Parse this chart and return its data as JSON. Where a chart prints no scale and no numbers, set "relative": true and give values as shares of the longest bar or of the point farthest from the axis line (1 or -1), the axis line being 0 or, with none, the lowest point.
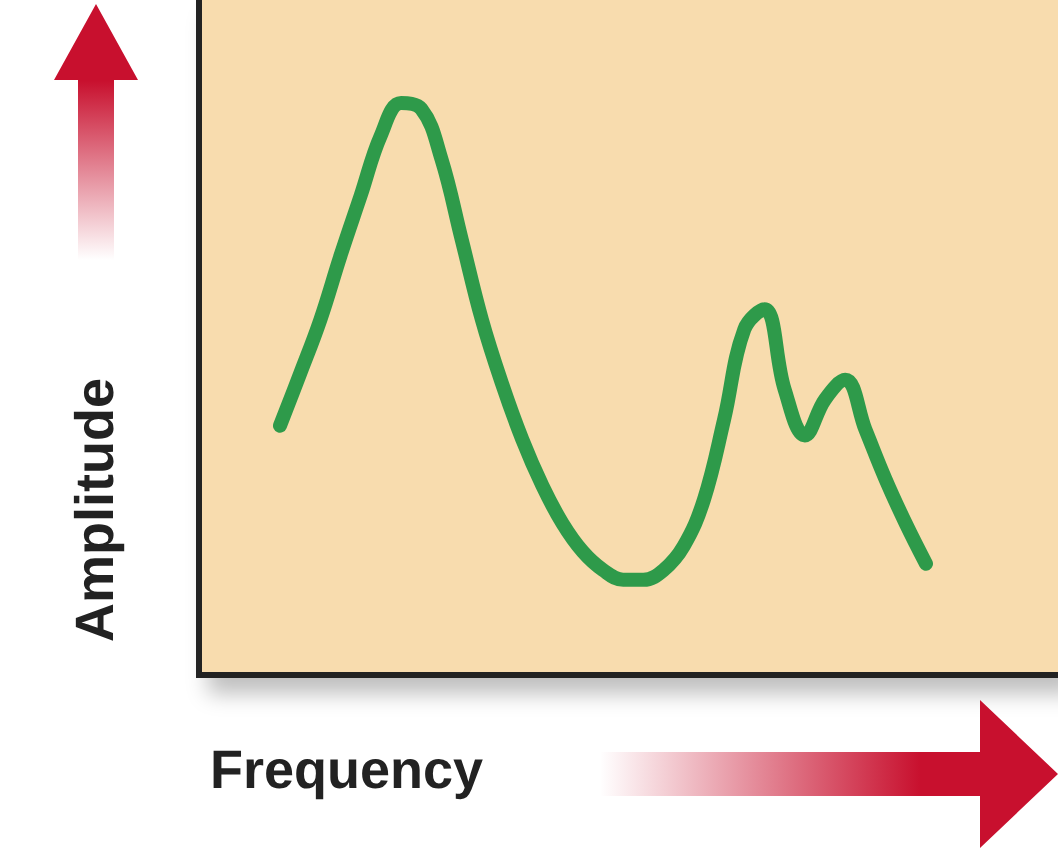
{
  "chart_data": {
    "type": "line",
    "xlabel": "Frequency",
    "ylabel": "Amplitude",
    "relative": true,
    "line_style": "solid",
    "categories": [
      null,
      null,
      null,
      null,
      null,
      null,
      null,
      null,
      null,
      null,
      null,
      null,
      null,
      null,
      null,
      null,
      null,
      null,
      null,
      null,
      null,
      null,
      null,
      null,
      null,
      null,
      null,
      null,
      null,
      null,
      null,
      null,
      null
    ],
    "series": [
      {
        "color": "#2e9a4a",
        "values": [
          0.437,
          0.528,
          0.622,
          0.734,
          0.839,
          0.944,
          1,
          0.99,
          0.902,
          0.762,
          0.622,
          0.51,
          0.413,
          0.332,
          0.266,
          0.217,
          0.185,
          0.168,
          0.168,
          0.185,
          0.227,
          0.308,
          0.448,
          0.605,
          0.64,
          0.5,
          0.42,
          0.483,
          0.517,
          0.43,
          0.343,
          0.266,
          0.196
        ]
      }
    ]
  }
}
